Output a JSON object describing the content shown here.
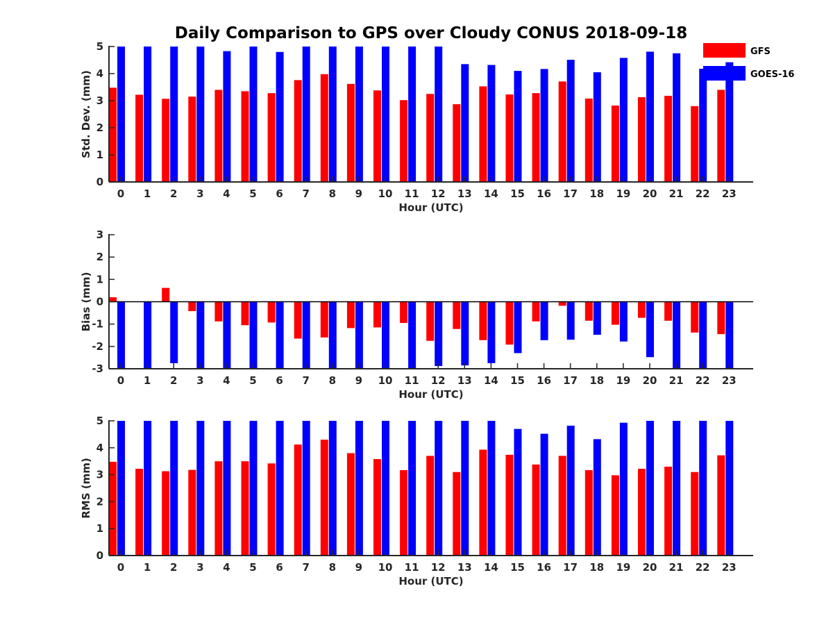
{
  "title": "Daily Comparison to GPS over Cloudy CONUS 2018-09-18",
  "legend": {
    "placement": "top-right",
    "entries": [
      {
        "name": "GFS",
        "color": "#ff0000"
      },
      {
        "name": "GOES-16",
        "color": "#0000ff"
      }
    ]
  },
  "chart_data": [
    {
      "type": "bar",
      "xlabel": "Hour (UTC)",
      "ylabel": "Std. Dev. (mm)",
      "ylim": [
        0,
        5
      ],
      "yticks": [
        0,
        1,
        2,
        3,
        4,
        5
      ],
      "grid": false,
      "categories": [
        "0",
        "1",
        "2",
        "3",
        "4",
        "5",
        "6",
        "7",
        "8",
        "9",
        "10",
        "11",
        "12",
        "13",
        "14",
        "15",
        "16",
        "17",
        "18",
        "19",
        "20",
        "21",
        "22",
        "23"
      ],
      "series": [
        {
          "name": "GFS",
          "color": "#ff0000",
          "values": [
            3.48,
            3.22,
            3.07,
            3.15,
            3.4,
            3.35,
            3.28,
            3.76,
            3.98,
            3.62,
            3.38,
            3.02,
            3.25,
            2.87,
            3.53,
            3.23,
            3.28,
            3.71,
            3.08,
            2.82,
            3.13,
            3.18,
            2.8,
            3.4
          ]
        },
        {
          "name": "GOES-16",
          "color": "#0000ff",
          "values": [
            5.0,
            5.0,
            5.0,
            5.0,
            4.83,
            5.0,
            4.8,
            5.0,
            5.0,
            5.0,
            5.0,
            5.0,
            5.0,
            4.35,
            4.32,
            4.1,
            4.17,
            4.51,
            4.05,
            4.58,
            4.81,
            4.75,
            4.18,
            4.42
          ]
        }
      ]
    },
    {
      "type": "bar",
      "xlabel": "Hour (UTC)",
      "ylabel": "Bias (mm)",
      "ylim": [
        -3,
        3
      ],
      "yticks": [
        -3,
        -2,
        -1,
        0,
        1,
        2,
        3
      ],
      "zero_line": true,
      "grid": false,
      "categories": [
        "0",
        "1",
        "2",
        "3",
        "4",
        "5",
        "6",
        "7",
        "8",
        "9",
        "10",
        "11",
        "12",
        "13",
        "14",
        "15",
        "16",
        "17",
        "18",
        "19",
        "20",
        "21",
        "22",
        "23"
      ],
      "series": [
        {
          "name": "GFS",
          "color": "#ff0000",
          "values": [
            0.2,
            0.0,
            0.62,
            -0.42,
            -0.88,
            -1.05,
            -0.93,
            -1.65,
            -1.6,
            -1.18,
            -1.15,
            -0.95,
            -1.75,
            -1.22,
            -1.72,
            -1.92,
            -0.88,
            -0.18,
            -0.85,
            -1.03,
            -0.72,
            -0.85,
            -1.38,
            -1.45
          ]
        },
        {
          "name": "GOES-16",
          "color": "#0000ff",
          "values": [
            -3.0,
            -3.0,
            -2.75,
            -3.0,
            -3.0,
            -3.0,
            -3.0,
            -3.0,
            -3.0,
            -3.0,
            -3.0,
            -3.0,
            -2.88,
            -2.85,
            -2.75,
            -2.3,
            -1.72,
            -1.7,
            -1.48,
            -1.78,
            -2.48,
            -3.0,
            -3.0,
            -3.0
          ]
        }
      ]
    },
    {
      "type": "bar",
      "xlabel": "Hour (UTC)",
      "ylabel": "RMS (mm)",
      "ylim": [
        0,
        5
      ],
      "yticks": [
        0,
        1,
        2,
        3,
        4,
        5
      ],
      "grid": false,
      "categories": [
        "0",
        "1",
        "2",
        "3",
        "4",
        "5",
        "6",
        "7",
        "8",
        "9",
        "10",
        "11",
        "12",
        "13",
        "14",
        "15",
        "16",
        "17",
        "18",
        "19",
        "20",
        "21",
        "22",
        "23"
      ],
      "series": [
        {
          "name": "GFS",
          "color": "#ff0000",
          "values": [
            3.48,
            3.22,
            3.13,
            3.18,
            3.5,
            3.5,
            3.42,
            4.12,
            4.3,
            3.8,
            3.58,
            3.17,
            3.7,
            3.1,
            3.93,
            3.74,
            3.38,
            3.7,
            3.17,
            2.98,
            3.22,
            3.3,
            3.1,
            3.72
          ]
        },
        {
          "name": "GOES-16",
          "color": "#0000ff",
          "values": [
            5.0,
            5.0,
            5.0,
            5.0,
            5.0,
            5.0,
            5.0,
            5.0,
            5.0,
            5.0,
            5.0,
            5.0,
            5.0,
            5.0,
            5.0,
            4.7,
            4.52,
            4.82,
            4.32,
            4.93,
            5.0,
            5.0,
            5.0,
            5.0
          ]
        }
      ]
    }
  ]
}
